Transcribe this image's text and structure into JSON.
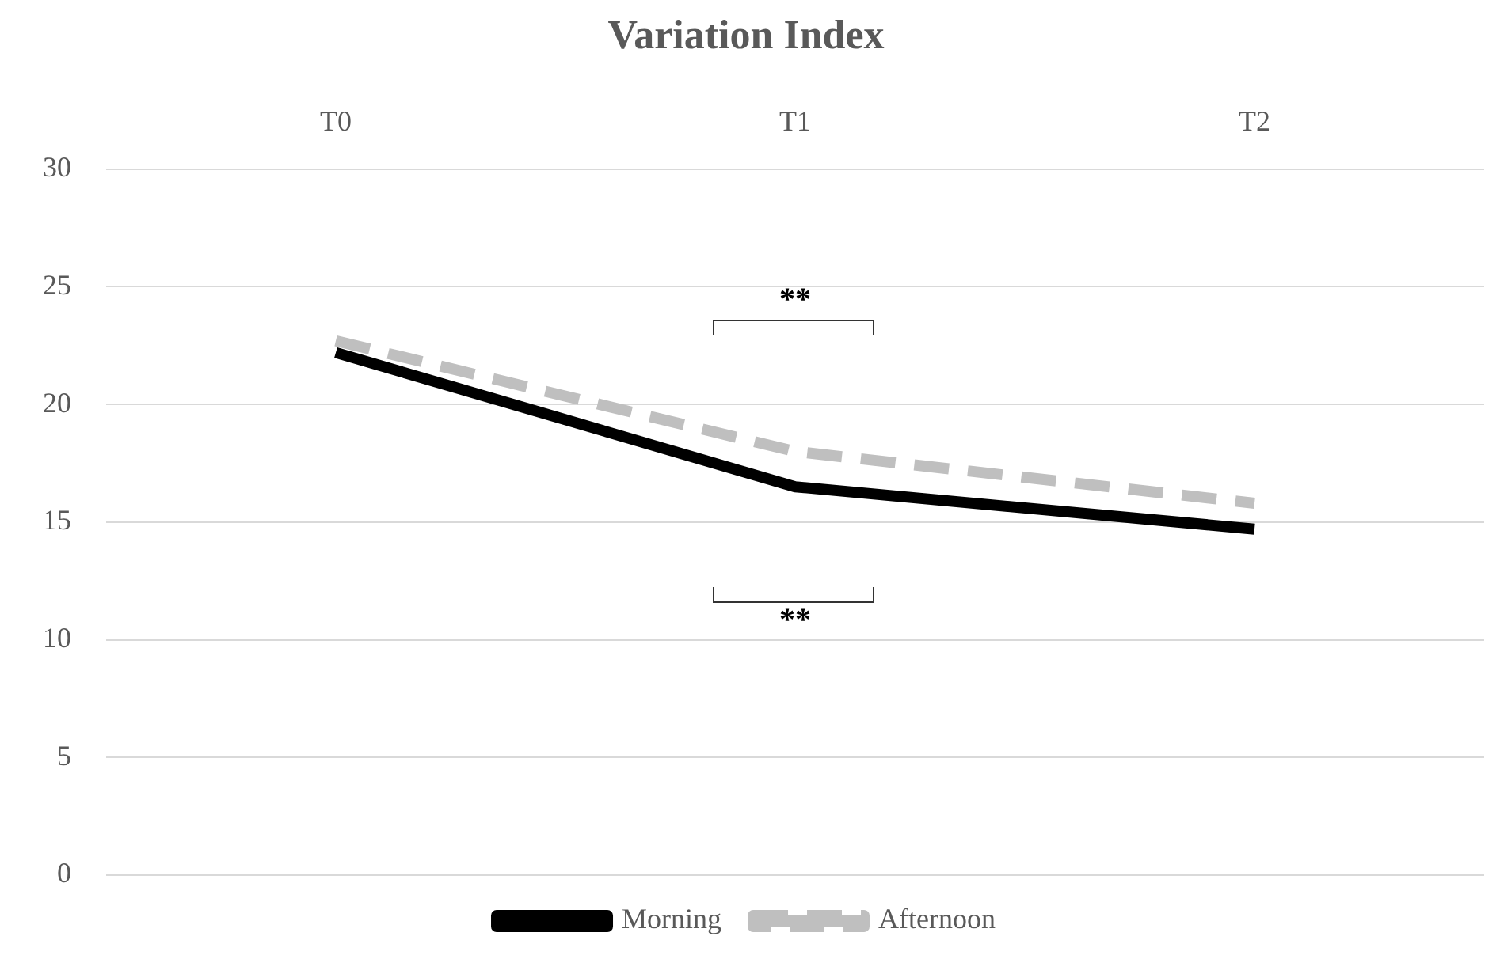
{
  "chart_data": {
    "type": "line",
    "title": "Variation Index",
    "categories": [
      "T0",
      "T1",
      "T2"
    ],
    "series": [
      {
        "name": "Morning",
        "color": "#000000",
        "values": [
          22.2,
          16.5,
          14.7
        ],
        "line_style": "solid"
      },
      {
        "name": "Afternoon",
        "color": "#bfbfbf",
        "values": [
          22.7,
          18.0,
          15.8
        ],
        "line_style": "dashed"
      }
    ],
    "ylim": [
      0,
      30
    ],
    "yticks": [
      0,
      5,
      10,
      15,
      20,
      25,
      30
    ],
    "grid": "y",
    "legend": "bottom",
    "marker": "none",
    "annotations": [
      "**",
      "**"
    ]
  }
}
